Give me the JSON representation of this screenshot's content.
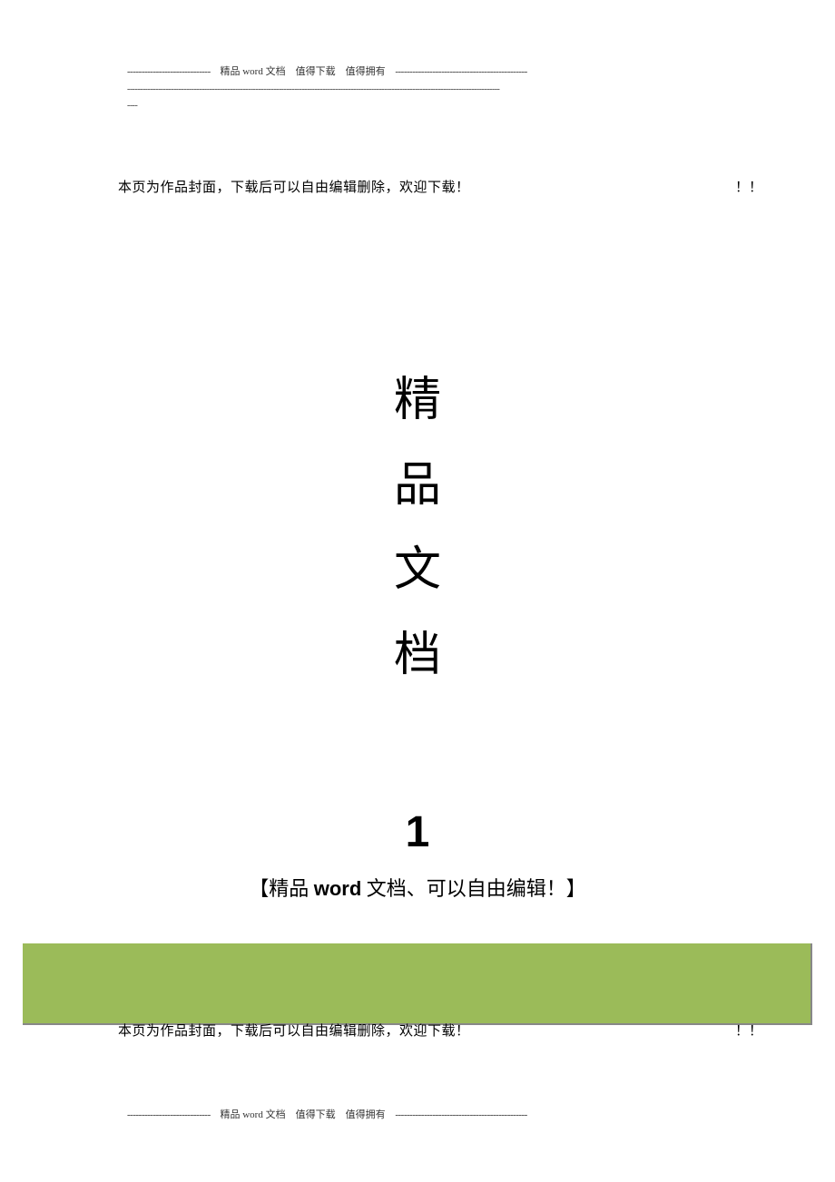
{
  "header": {
    "dashes_left": "-----------------------------",
    "label": "精品 word 文档　值得下载　值得拥有",
    "dashes_right": "----------------------------------------------",
    "line2_dashes": "-------------------------------------------------------------------------------------------------------------------------------------------------",
    "line3_dashes": "----"
  },
  "cover_notice": {
    "text": "本页为作品封面，下载后可以自由编辑删除，欢迎下载！",
    "exclamation": "！！"
  },
  "vertical_title": {
    "char1": "精",
    "char2": "品",
    "char3": "文",
    "char4": "档"
  },
  "big_number": "1",
  "subtitle": {
    "prefix": "【精品 ",
    "word": "word",
    "suffix": " 文档、可以自由编辑！】"
  },
  "green_bar": {
    "background_color": "#9bbb59",
    "shadow_color": "#888888"
  },
  "cover_notice2": {
    "text": "本页为作品封面，下载后可以自由编辑删除，欢迎下载！",
    "exclamation": "！！"
  },
  "footer": {
    "dashes_left": "-----------------------------",
    "label": "精品 word 文档　值得下载　值得拥有",
    "dashes_right": "----------------------------------------------"
  }
}
